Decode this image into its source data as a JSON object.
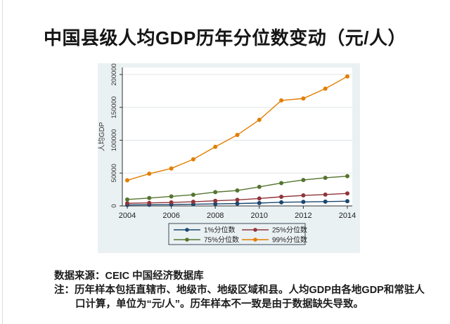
{
  "page": {
    "title": "中国县级人均GDP历年分位数变动（元/人）"
  },
  "chart_data": {
    "type": "line",
    "x": [
      2004,
      2005,
      2006,
      2007,
      2008,
      2009,
      2010,
      2011,
      2012,
      2013,
      2014
    ],
    "series": [
      {
        "key": "p1",
        "name": "1%分位数",
        "color": "#1a476f",
        "values": [
          1500,
          1800,
          2100,
          2600,
          3100,
          3600,
          4400,
          5500,
          6100,
          6600,
          7200
        ]
      },
      {
        "key": "p25",
        "name": "25%分位数",
        "color": "#90353b",
        "values": [
          4000,
          4600,
          5300,
          6300,
          7800,
          9200,
          11300,
          13900,
          16000,
          17300,
          19000
        ]
      },
      {
        "key": "p75",
        "name": "75%分位数",
        "color": "#55752f",
        "values": [
          9800,
          12000,
          14500,
          17000,
          21000,
          23500,
          29000,
          34800,
          39500,
          42800,
          45300
        ]
      },
      {
        "key": "p99",
        "name": "99%分位数",
        "color": "#e37e00",
        "values": [
          39000,
          49000,
          57000,
          71000,
          90000,
          108000,
          131000,
          160500,
          163500,
          178500,
          197000
        ]
      }
    ],
    "title": "",
    "xlabel": "",
    "ylabel": "人均GDP",
    "yticks": [
      0,
      50000,
      100000,
      150000,
      200000
    ],
    "xticks": [
      2004,
      2006,
      2008,
      2010,
      2012,
      2014
    ],
    "ylim": [
      0,
      210000
    ],
    "xlim": [
      2004,
      2014
    ],
    "grid": true,
    "legend_position": "bottom-box",
    "colors": {
      "chart_background": "#eaf1f3",
      "plot_background": "#ffffff",
      "gridline": "#e0e6e8",
      "axis": "#303030",
      "tick_label": "#333333",
      "legend_border": "#3c4c58",
      "legend_text": "#222222"
    }
  },
  "notes": {
    "source": "数据来源：CEIC 中国经济数据库",
    "note_line1": "注：历年样本包括直辖市、地级市、地级区域和县。人均GDP由各地GDP和常驻人",
    "note_line2": "口计算，单位为“元/人”。历年样本不一致是由于数据缺失导致。"
  }
}
